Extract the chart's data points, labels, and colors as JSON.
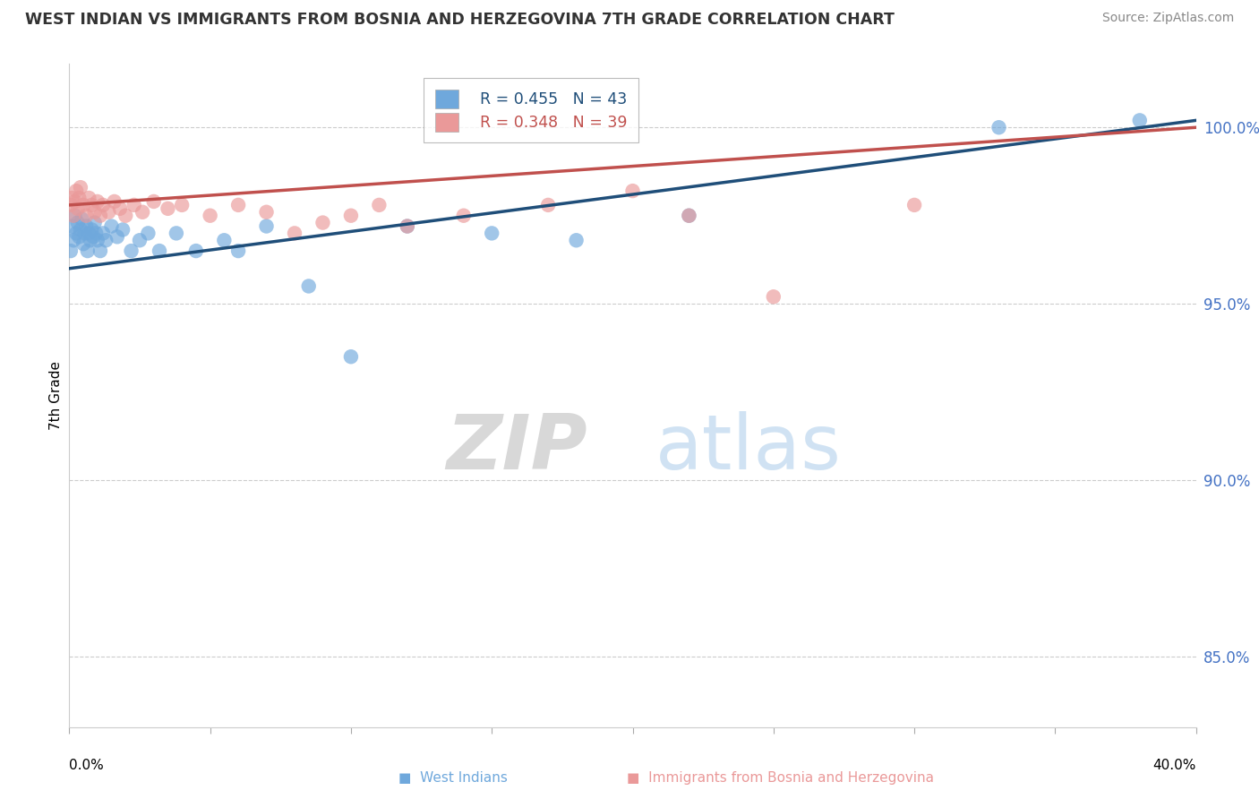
{
  "title": "WEST INDIAN VS IMMIGRANTS FROM BOSNIA AND HERZEGOVINA 7TH GRADE CORRELATION CHART",
  "source": "Source: ZipAtlas.com",
  "ylabel": "7th Grade",
  "xlim": [
    0.0,
    40.0
  ],
  "ylim": [
    83.0,
    101.8
  ],
  "yticks": [
    85.0,
    90.0,
    95.0,
    100.0
  ],
  "ytick_labels": [
    "85.0%",
    "90.0%",
    "95.0%",
    "100.0%"
  ],
  "legend_blue_r": "R = 0.455",
  "legend_blue_n": "N = 43",
  "legend_pink_r": "R = 0.348",
  "legend_pink_n": "N = 39",
  "blue_color": "#6fa8dc",
  "pink_color": "#ea9999",
  "blue_line_color": "#1f4e79",
  "pink_line_color": "#c0504d",
  "watermark_zip": "ZIP",
  "watermark_atlas": "atlas",
  "bottom_legend_blue": "West Indians",
  "bottom_legend_pink": "Immigrants from Bosnia and Herzegovina",
  "blue_x": [
    0.05,
    0.1,
    0.15,
    0.2,
    0.25,
    0.3,
    0.35,
    0.4,
    0.45,
    0.5,
    0.55,
    0.6,
    0.65,
    0.7,
    0.75,
    0.8,
    0.85,
    0.9,
    0.95,
    1.0,
    1.1,
    1.2,
    1.3,
    1.5,
    1.7,
    1.9,
    2.2,
    2.5,
    2.8,
    3.2,
    3.8,
    4.5,
    5.5,
    6.0,
    7.0,
    8.5,
    10.0,
    12.0,
    15.0,
    18.0,
    22.0,
    33.0,
    38.0
  ],
  "blue_y": [
    96.5,
    97.2,
    96.8,
    97.5,
    97.0,
    97.3,
    96.9,
    97.1,
    97.4,
    96.7,
    97.0,
    97.2,
    96.5,
    97.0,
    96.8,
    97.1,
    96.9,
    97.3,
    97.0,
    96.8,
    96.5,
    97.0,
    96.8,
    97.2,
    96.9,
    97.1,
    96.5,
    96.8,
    97.0,
    96.5,
    97.0,
    96.5,
    96.8,
    96.5,
    97.2,
    95.5,
    93.5,
    97.2,
    97.0,
    96.8,
    97.5,
    100.0,
    100.2
  ],
  "pink_x": [
    0.05,
    0.1,
    0.15,
    0.2,
    0.25,
    0.3,
    0.35,
    0.4,
    0.5,
    0.6,
    0.7,
    0.8,
    0.9,
    1.0,
    1.1,
    1.2,
    1.4,
    1.6,
    1.8,
    2.0,
    2.3,
    2.6,
    3.0,
    3.5,
    4.0,
    5.0,
    6.0,
    7.0,
    8.0,
    9.0,
    10.0,
    11.0,
    12.0,
    14.0,
    17.0,
    20.0,
    22.0,
    25.0,
    30.0
  ],
  "pink_y": [
    97.8,
    98.0,
    97.5,
    97.9,
    98.2,
    97.7,
    98.0,
    98.3,
    97.8,
    97.5,
    98.0,
    97.8,
    97.6,
    97.9,
    97.5,
    97.8,
    97.6,
    97.9,
    97.7,
    97.5,
    97.8,
    97.6,
    97.9,
    97.7,
    97.8,
    97.5,
    97.8,
    97.6,
    97.0,
    97.3,
    97.5,
    97.8,
    97.2,
    97.5,
    97.8,
    98.2,
    97.5,
    95.2,
    97.8
  ],
  "blue_trend_x0": 0.0,
  "blue_trend_y0": 96.0,
  "blue_trend_x1": 40.0,
  "blue_trend_y1": 100.2,
  "pink_trend_x0": 0.0,
  "pink_trend_y0": 97.8,
  "pink_trend_x1": 40.0,
  "pink_trend_y1": 100.0
}
